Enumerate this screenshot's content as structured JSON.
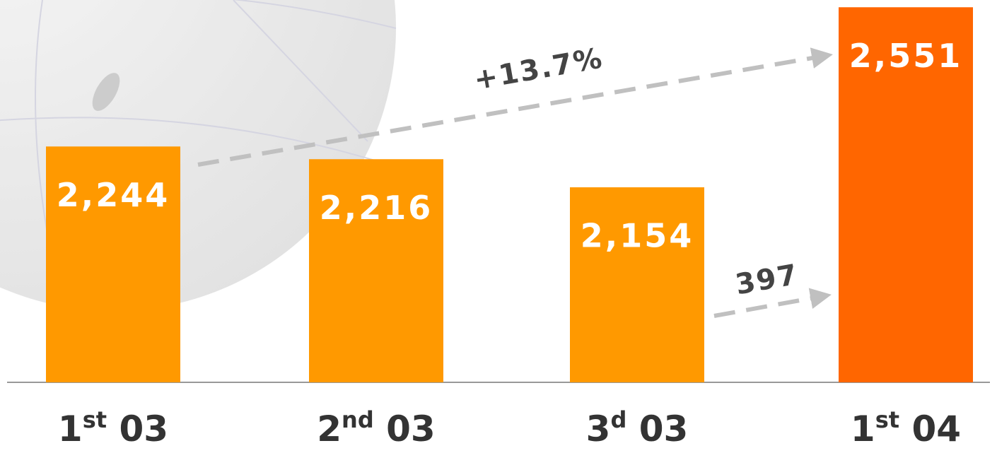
{
  "chart_data": {
    "type": "bar",
    "categories": [
      "1st 03",
      "2nd 03",
      "3d 03",
      "1st 04"
    ],
    "values": [
      2244,
      2216,
      2154,
      2551
    ],
    "value_labels": [
      "2,244",
      "2,216",
      "2,154",
      "2,551"
    ],
    "colors": [
      "#ff9900",
      "#ff9900",
      "#ff9900",
      "#ff6600"
    ],
    "ylim": [
      1724,
      2567
    ],
    "annotations": [
      "+13.7%",
      "397"
    ]
  }
}
